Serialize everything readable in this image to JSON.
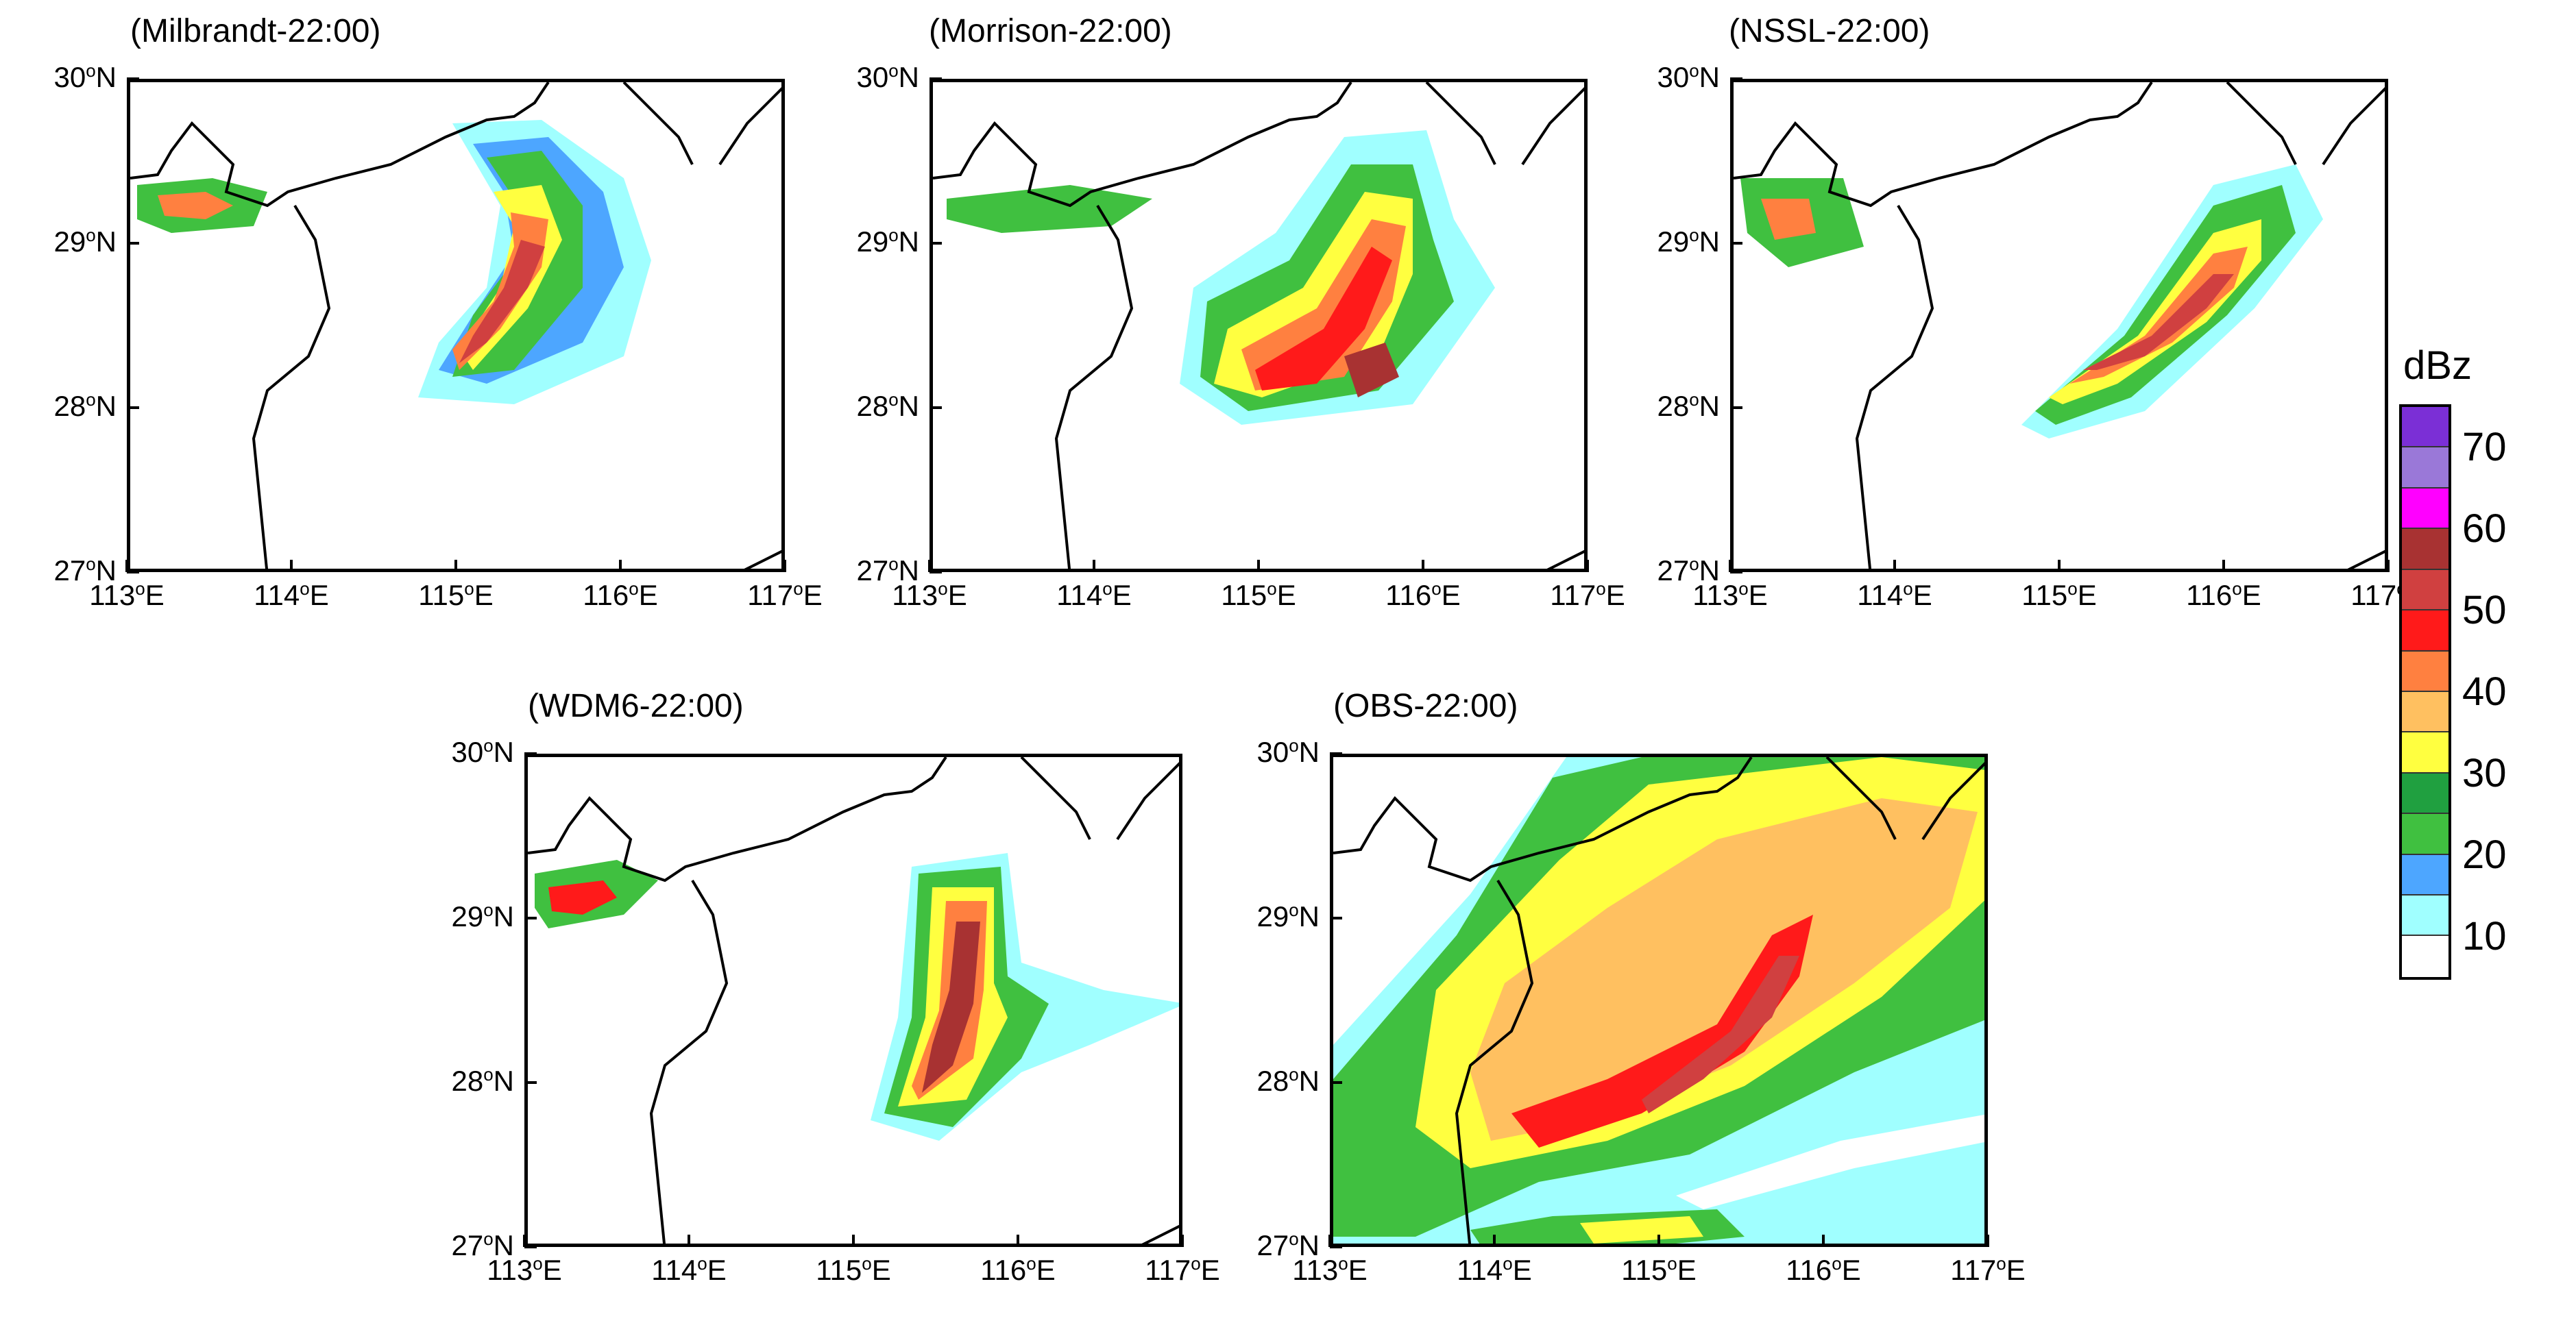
{
  "panels": [
    {
      "title": "(Milbrandt-22:00)",
      "cells": [
        {
          "c": 20,
          "r": 40,
          "w": 30,
          "h": 10
        },
        {
          "c": 15,
          "r": 33,
          "w": 40,
          "h": 18
        },
        {
          "c": 5,
          "r": 15,
          "w": 40,
          "h": 10
        }
      ]
    },
    {
      "title": "(Morrison-22:00)",
      "cells": [
        {
          "c": 20,
          "r": 40,
          "w": 30,
          "h": 10
        },
        {
          "c": 15,
          "r": 33,
          "w": 40,
          "h": 18
        },
        {
          "c": 5,
          "r": 15,
          "w": 40,
          "h": 10
        }
      ]
    },
    {
      "title": "(NSSL-22:00)",
      "cells": [
        {
          "c": 20,
          "r": 40,
          "w": 30,
          "h": 10
        },
        {
          "c": 15,
          "r": 33,
          "w": 40,
          "h": 18
        },
        {
          "c": 5,
          "r": 15,
          "w": 40,
          "h": 10
        }
      ]
    },
    {
      "title": "(WDM6-22:00)",
      "cells": [
        {
          "c": 20,
          "r": 40,
          "w": 30,
          "h": 10
        },
        {
          "c": 15,
          "r": 33,
          "w": 40,
          "h": 18
        },
        {
          "c": 5,
          "r": 15,
          "w": 40,
          "h": 10
        }
      ]
    },
    {
      "title": "(OBS-22:00)",
      "cells": [
        {
          "c": 20,
          "r": 40,
          "w": 30,
          "h": 10
        },
        {
          "c": 15,
          "r": 33,
          "w": 40,
          "h": 18
        },
        {
          "c": 5,
          "r": 15,
          "w": 40,
          "h": 10
        }
      ]
    }
  ],
  "axis": {
    "lat_labels": [
      {
        "deg": "30",
        "suf": "N"
      },
      {
        "deg": "29",
        "suf": "N"
      },
      {
        "deg": "28",
        "suf": "N"
      },
      {
        "deg": "27",
        "suf": "N"
      }
    ],
    "lon_labels": [
      {
        "deg": "113",
        "suf": "E"
      },
      {
        "deg": "114",
        "suf": "E"
      },
      {
        "deg": "115",
        "suf": "E"
      },
      {
        "deg": "116",
        "suf": "E"
      },
      {
        "deg": "117",
        "suf": "E"
      }
    ],
    "lat_range": [
      27,
      30
    ],
    "lon_range": [
      113,
      117
    ]
  },
  "colorbar": {
    "title": "dBz",
    "labels": [
      "70",
      "60",
      "50",
      "40",
      "30",
      "20",
      "10"
    ],
    "colors": [
      "#7b2fd6",
      "#9a78d8",
      "#ff00ff",
      "#a83232",
      "#d04040",
      "#ff1a1a",
      "#ff8040",
      "#ffc060",
      "#ffff40",
      "#20a040",
      "#40c040",
      "#4da6ff",
      "#a0ffff",
      "#ffffff"
    ]
  },
  "colors": {
    "c10": "#a0ffff",
    "c15": "#4da6ff",
    "c20": "#40c040",
    "c25": "#20a040",
    "c30": "#ffff40",
    "c35": "#ffc060",
    "c40": "#ff8040",
    "c45": "#ff1a1a",
    "c50": "#d04040",
    "c55": "#a83232"
  }
}
